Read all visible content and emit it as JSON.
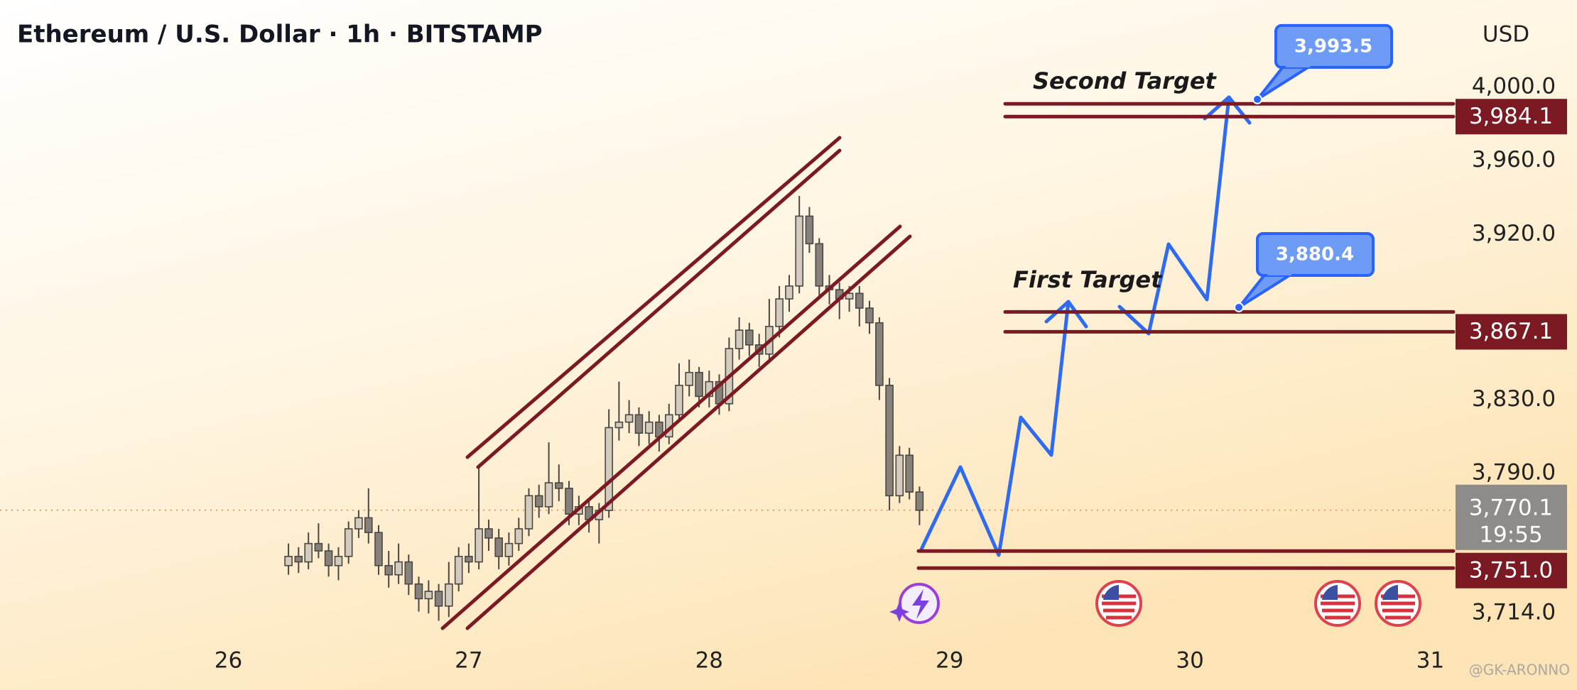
{
  "chart_data": {
    "type": "candlestick",
    "title": "Ethereum / U.S. Dollar · 1h · BITSTAMP",
    "y_axis_label": "USD",
    "x": [
      26.25,
      26.292,
      26.333,
      26.375,
      26.417,
      26.458,
      26.5,
      26.542,
      26.583,
      26.625,
      26.667,
      26.708,
      26.75,
      26.792,
      26.833,
      26.875,
      26.917,
      26.958,
      27,
      27.042,
      27.083,
      27.125,
      27.167,
      27.208,
      27.25,
      27.292,
      27.333,
      27.375,
      27.417,
      27.458,
      27.5,
      27.542,
      27.583,
      27.625,
      27.667,
      27.708,
      27.75,
      27.792,
      27.833,
      27.875,
      27.917,
      27.958,
      28,
      28.042,
      28.083,
      28.125,
      28.167,
      28.208,
      28.25,
      28.292,
      28.333,
      28.375,
      28.417,
      28.458,
      28.5,
      28.542,
      28.583,
      28.625,
      28.667,
      28.708,
      28.75,
      28.792,
      28.833,
      28.875
    ],
    "open": [
      3740,
      3745,
      3742,
      3752,
      3748,
      3740,
      3745,
      3760,
      3766,
      3758,
      3740,
      3735,
      3742,
      3730,
      3722,
      3726,
      3718,
      3730,
      3745,
      3742,
      3760,
      3755,
      3745,
      3752,
      3760,
      3778,
      3772,
      3785,
      3782,
      3768,
      3772,
      3765,
      3770,
      3815,
      3818,
      3822,
      3812,
      3818,
      3810,
      3822,
      3838,
      3845,
      3832,
      3840,
      3828,
      3858,
      3868,
      3860,
      3855,
      3870,
      3885,
      3892,
      3930,
      3915,
      3892,
      3890,
      3885,
      3888,
      3880,
      3872,
      3838,
      3778,
      3800,
      3780
    ],
    "high": [
      3752,
      3750,
      3758,
      3763,
      3752,
      3750,
      3764,
      3770,
      3782,
      3762,
      3748,
      3752,
      3746,
      3734,
      3732,
      3730,
      3742,
      3750,
      3752,
      3793,
      3765,
      3760,
      3758,
      3766,
      3782,
      3784,
      3807,
      3795,
      3786,
      3778,
      3776,
      3774,
      3825,
      3840,
      3830,
      3826,
      3824,
      3822,
      3828,
      3850,
      3852,
      3848,
      3846,
      3844,
      3864,
      3875,
      3872,
      3866,
      3885,
      3892,
      3898,
      3941,
      3935,
      3918,
      3898,
      3894,
      3892,
      3892,
      3884,
      3875,
      3842,
      3805,
      3804,
      3783
    ],
    "low": [
      3735,
      3736,
      3738,
      3744,
      3734,
      3732,
      3741,
      3755,
      3752,
      3735,
      3728,
      3730,
      3724,
      3715,
      3714,
      3710,
      3712,
      3726,
      3736,
      3738,
      3748,
      3738,
      3740,
      3748,
      3756,
      3766,
      3768,
      3775,
      3762,
      3762,
      3758,
      3752,
      3766,
      3808,
      3812,
      3805,
      3806,
      3802,
      3806,
      3818,
      3832,
      3826,
      3826,
      3822,
      3824,
      3852,
      3854,
      3848,
      3850,
      3864,
      3878,
      3888,
      3910,
      3885,
      3882,
      3874,
      3878,
      3870,
      3866,
      3830,
      3770,
      3774,
      3776,
      3762
    ],
    "close": [
      3745,
      3742,
      3752,
      3748,
      3740,
      3745,
      3760,
      3766,
      3758,
      3740,
      3735,
      3742,
      3730,
      3722,
      3726,
      3718,
      3730,
      3745,
      3742,
      3760,
      3755,
      3745,
      3752,
      3760,
      3778,
      3772,
      3785,
      3782,
      3768,
      3772,
      3765,
      3770,
      3815,
      3818,
      3822,
      3812,
      3818,
      3810,
      3822,
      3838,
      3845,
      3832,
      3840,
      3828,
      3858,
      3868,
      3860,
      3855,
      3870,
      3885,
      3892,
      3930,
      3915,
      3892,
      3890,
      3885,
      3888,
      3880,
      3872,
      3838,
      3778,
      3800,
      3780,
      3770.1
    ],
    "up_color": "#d3cbbd",
    "down_color": "#86817b",
    "wick_color": "#4a4744",
    "xlim": [
      25.05,
      31.096
    ],
    "xticks": [
      26,
      27,
      28,
      29,
      30,
      31
    ],
    "ylim": [
      3704.4,
      4047.5
    ],
    "yticks": [
      {
        "value": 4000,
        "label": "4,000.0"
      },
      {
        "value": 3960,
        "label": "3,960.0"
      },
      {
        "value": 3920,
        "label": "3,920.0"
      },
      {
        "value": 3830,
        "label": "3,830.0"
      },
      {
        "value": 3790,
        "label": "3,790.0"
      },
      {
        "value": 3714,
        "label": "3,714.0"
      }
    ],
    "levels": [
      {
        "value": 3984.1,
        "label": "3,984.1"
      },
      {
        "value": 3867.1,
        "label": "3,867.1"
      },
      {
        "value": 3751,
        "label": "3,751.0"
      }
    ],
    "level_color": "#7b1a22",
    "current_price": {
      "value": 3770.1,
      "label": "3,770.1",
      "countdown": "19:55"
    },
    "annotations": [
      "Second Target",
      "First Target"
    ],
    "targets": [
      {
        "value": 3993.5,
        "label": "3,993.5"
      },
      {
        "value": 3880.4,
        "label": "3,880.4"
      }
    ],
    "watermark": "@GK-ARONNO"
  }
}
